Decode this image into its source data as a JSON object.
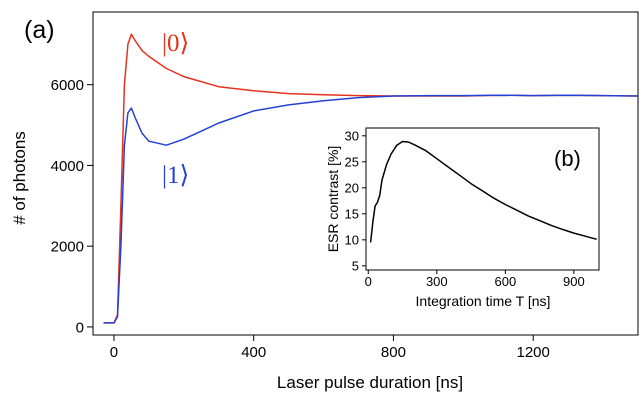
{
  "chart_data": [
    {
      "id": "main",
      "panel_label": "(a)",
      "type": "line",
      "xlabel": "Laser pulse duration [ns]",
      "ylabel": "# of photons",
      "xlim": [
        -60,
        1500
      ],
      "ylim": [
        -200,
        7800
      ],
      "xticks": [
        0,
        400,
        800,
        1200
      ],
      "yticks": [
        0,
        2000,
        4000,
        6000
      ],
      "grid": false,
      "legend": "none",
      "series": [
        {
          "name": "|0⟩",
          "color": "#e8321e",
          "x": [
            -30,
            0,
            10,
            20,
            30,
            40,
            50,
            60,
            80,
            100,
            150,
            200,
            300,
            400,
            500,
            600,
            700,
            800,
            900,
            1000,
            1100,
            1200,
            1300,
            1400,
            1500
          ],
          "y": [
            100,
            100,
            300,
            3000,
            6000,
            7000,
            7250,
            7100,
            6850,
            6700,
            6400,
            6200,
            5950,
            5850,
            5780,
            5750,
            5730,
            5720,
            5720,
            5720,
            5740,
            5730,
            5740,
            5730,
            5720
          ]
        },
        {
          "name": "|1⟩",
          "color": "#2440d8",
          "x": [
            -30,
            0,
            10,
            20,
            30,
            40,
            50,
            60,
            80,
            100,
            150,
            200,
            300,
            400,
            500,
            600,
            700,
            800,
            900,
            1000,
            1100,
            1200,
            1300,
            1400,
            1500
          ],
          "y": [
            100,
            100,
            250,
            2000,
            4500,
            5300,
            5420,
            5200,
            4800,
            4600,
            4500,
            4650,
            5050,
            5350,
            5500,
            5600,
            5680,
            5720,
            5730,
            5730,
            5740,
            5730,
            5740,
            5730,
            5720
          ]
        }
      ]
    },
    {
      "id": "inset",
      "panel_label": "(b)",
      "type": "line",
      "xlabel": "Integration time T [ns]",
      "ylabel": "ESR contrast [%]",
      "xlim": [
        -10,
        1010
      ],
      "ylim": [
        4.2,
        31.5
      ],
      "xticks": [
        0,
        300,
        600,
        900
      ],
      "yticks": [
        5,
        10,
        15,
        20,
        25,
        30
      ],
      "grid": false,
      "legend": "none",
      "series": [
        {
          "name": "",
          "color": "#000000",
          "x": [
            10,
            20,
            30,
            40,
            50,
            60,
            80,
            100,
            125,
            150,
            175,
            200,
            250,
            300,
            350,
            400,
            450,
            500,
            550,
            600,
            650,
            700,
            750,
            800,
            850,
            900,
            950,
            1000
          ],
          "y": [
            9.5,
            13.5,
            16.5,
            17.2,
            18.5,
            21.5,
            24.5,
            26.5,
            28.2,
            28.9,
            28.8,
            28.3,
            27.2,
            25.6,
            24,
            22.4,
            20.8,
            19.4,
            18,
            16.8,
            15.7,
            14.6,
            13.7,
            12.8,
            12,
            11.3,
            10.7,
            10.1
          ]
        }
      ]
    }
  ]
}
